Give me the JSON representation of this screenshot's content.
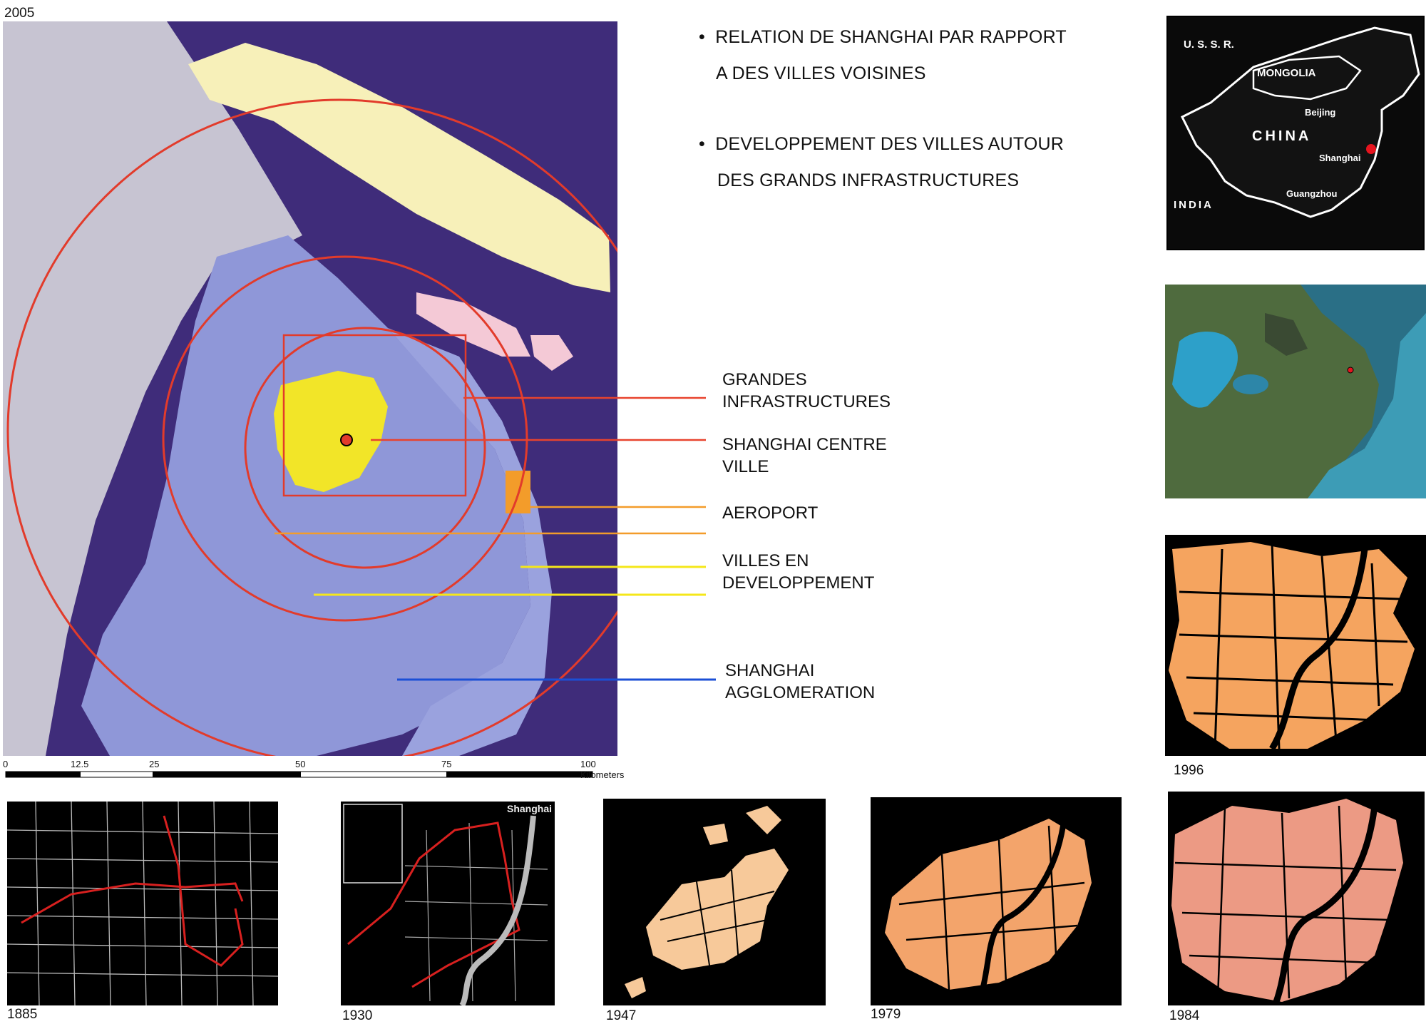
{
  "main_map": {
    "year": "2005",
    "scale_labels": [
      "0",
      "12.5",
      "25",
      "50",
      "75",
      "100 Kilometers"
    ]
  },
  "bullets": [
    {
      "line1": "RELATION DE SHANGHAI PAR RAPPORT",
      "line2": "A DES VILLES VOISINES"
    },
    {
      "line1": "DEVELOPPEMENT DES VILLES AUTOUR",
      "line2": "DES GRANDS INFRASTRUCTURES"
    }
  ],
  "legend": [
    {
      "label1": "GRANDES",
      "label2": "INFRASTRUCTURES",
      "color": "#e8432e"
    },
    {
      "label1": "SHANGHAI CENTRE",
      "label2": "VILLE",
      "color": "#e8432e"
    },
    {
      "label1": "AEROPORT",
      "label2": "",
      "color": "#f39c2a"
    },
    {
      "label1": "VILLES EN",
      "label2": "DEVELOPPEMENT",
      "color": "#f5e71a"
    },
    {
      "label1": "SHANGHAI",
      "label2": "AGGLOMERATION",
      "color": "#1b4fd6"
    }
  ],
  "china_map": {
    "labels": [
      "U. S. S. R.",
      "MONGOLIA",
      "Beijing",
      "CHINA",
      "Shanghai",
      "INDIA",
      "Guangzhou"
    ]
  },
  "historic_maps": [
    {
      "year": "1885"
    },
    {
      "year": "1930",
      "corner_label": "Shanghai"
    },
    {
      "year": "1947"
    },
    {
      "year": "1979"
    },
    {
      "year": "1984"
    },
    {
      "year": "1996"
    }
  ],
  "colors": {
    "water": "#3f2c7a",
    "land": "#c7c4d2",
    "urban_area": "#8f97d8",
    "island": "#f7f0b9",
    "city_center": "#f2e528",
    "ring": "#e23b2b",
    "growth_1947": "#f7c99a",
    "growth_1979": "#f3a46b",
    "growth_1984": "#ec9a84",
    "growth_1996": "#f5a45f"
  }
}
